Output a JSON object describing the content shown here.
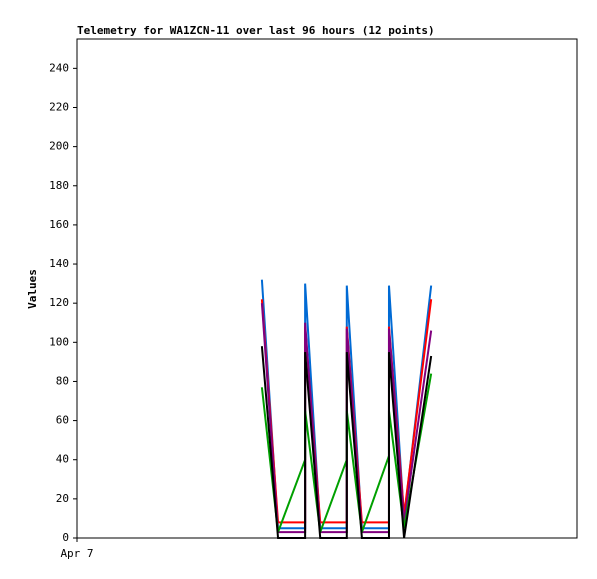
{
  "chart_data": {
    "type": "line",
    "title": "Telemetry for WA1ZCN-11 over last 96 hours (12 points)",
    "y_label": "Values",
    "x": [
      35.5,
      38.6,
      43.8,
      43.8,
      46.7,
      51.8,
      51.8,
      54.7,
      59.9,
      59.9,
      62.8,
      68.0
    ],
    "xlim": [
      0,
      96
    ],
    "xticks": [
      {
        "value": 0,
        "label": "Apr 7"
      }
    ],
    "ylim": [
      0,
      255
    ],
    "yticks": [
      0,
      20,
      40,
      60,
      80,
      100,
      120,
      140,
      160,
      180,
      200,
      220,
      240
    ],
    "grid": false,
    "series": [
      {
        "color": "#006ad4",
        "values": [
          132,
          5,
          5,
          130,
          5,
          5,
          129,
          5,
          5,
          129,
          10,
          129
        ]
      },
      {
        "color": "#ff0000",
        "values": [
          122,
          8,
          8,
          108,
          8,
          8,
          108,
          8,
          8,
          108,
          12,
          122
        ]
      },
      {
        "color": "#80007f",
        "values": [
          120,
          3,
          3,
          110,
          3,
          3,
          107,
          3,
          3,
          107,
          8,
          106
        ]
      },
      {
        "color": "#00a000",
        "values": [
          77,
          3,
          40,
          65,
          3,
          40,
          65,
          3,
          42,
          65,
          5,
          84
        ]
      },
      {
        "color": "#000000",
        "values": [
          98,
          0,
          0,
          95,
          0,
          0,
          95,
          0,
          0,
          95,
          0,
          93
        ]
      }
    ]
  }
}
